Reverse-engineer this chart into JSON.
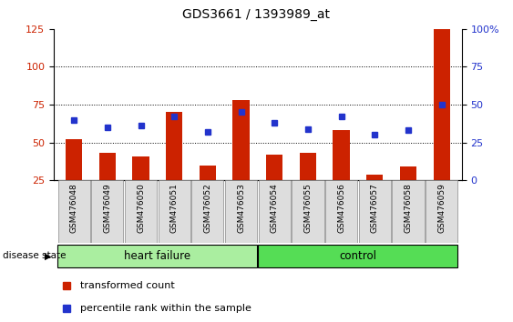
{
  "title": "GDS3661 / 1393989_at",
  "samples": [
    "GSM476048",
    "GSM476049",
    "GSM476050",
    "GSM476051",
    "GSM476052",
    "GSM476053",
    "GSM476054",
    "GSM476055",
    "GSM476056",
    "GSM476057",
    "GSM476058",
    "GSM476059"
  ],
  "transformed_count": [
    52,
    43,
    41,
    70,
    35,
    78,
    42,
    43,
    58,
    29,
    34,
    125
  ],
  "percentile_rank": [
    40,
    35,
    36,
    42,
    32,
    45,
    38,
    34,
    42,
    30,
    33,
    50
  ],
  "heart_failure_count": 6,
  "control_count": 6,
  "left_ylim": [
    25,
    125
  ],
  "left_yticks": [
    25,
    50,
    75,
    100,
    125
  ],
  "right_ylim": [
    0,
    100
  ],
  "right_yticks": [
    0,
    25,
    50,
    75,
    100
  ],
  "bar_color": "#cc2200",
  "marker_color": "#2233cc",
  "background_color": "#ffffff",
  "dotted_grid_values": [
    50,
    75,
    100
  ],
  "heart_failure_color": "#aaeea0",
  "control_color": "#55dd55",
  "legend_items": [
    "transformed count",
    "percentile rank within the sample"
  ],
  "disease_state_label": "disease state",
  "heart_failure_label": "heart failure",
  "control_label": "control",
  "title_fontsize": 10,
  "axis_fontsize": 8,
  "tick_label_fontsize": 6.5,
  "bar_width": 0.5
}
